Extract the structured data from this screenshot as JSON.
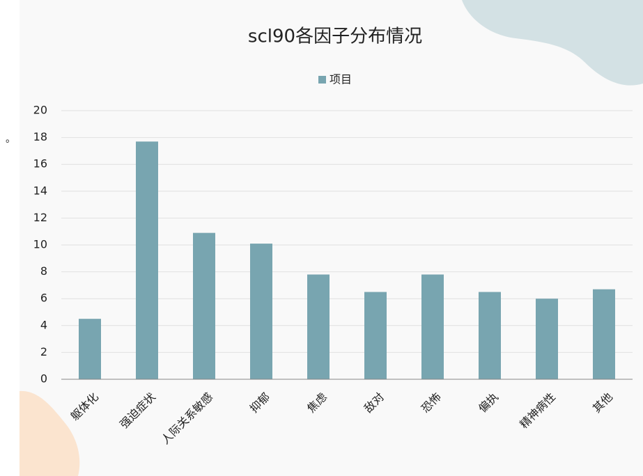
{
  "chart_data": {
    "type": "bar",
    "title": "scl90各因子分布情况",
    "categories": [
      "躯体化",
      "强迫症状",
      "人际关系敏感",
      "抑郁",
      "焦虑",
      "敌对",
      "恐怖",
      "偏执",
      "精神病性",
      "其他"
    ],
    "series": [
      {
        "name": "项目",
        "color": "#78a5b0",
        "values": [
          4.5,
          17.7,
          10.9,
          10.1,
          7.8,
          6.5,
          7.8,
          6.5,
          6.0,
          6.7
        ]
      }
    ],
    "ylim": [
      0,
      20
    ],
    "yticks": [
      0,
      2,
      4,
      6,
      8,
      10,
      12,
      14,
      16,
      18,
      20
    ],
    "grid": true,
    "legend": "top"
  },
  "margin_mark": "。"
}
